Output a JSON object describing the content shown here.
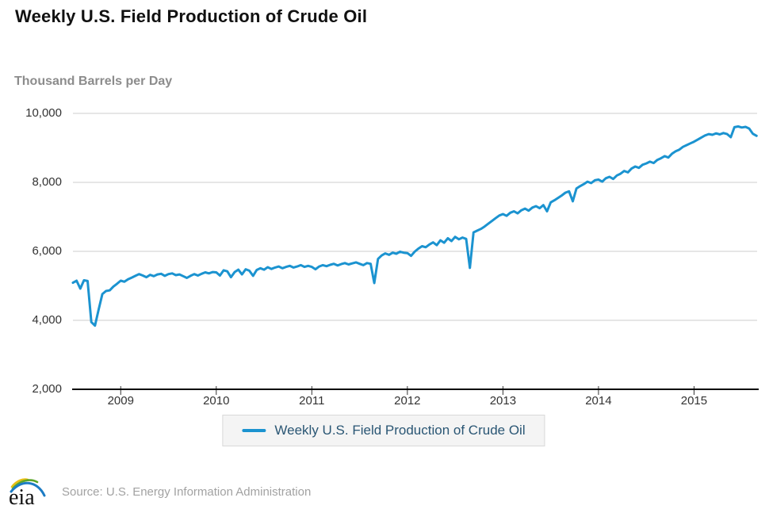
{
  "header": {
    "title": "Weekly U.S. Field Production of Crude Oil",
    "subtitle": "Thousand Barrels per Day"
  },
  "legend": {
    "label": "Weekly U.S. Field Production of Crude Oil",
    "swatch_color": "#1b93d0"
  },
  "footer": {
    "logo_text": "eia",
    "source": "Source: U.S. Energy Information Administration"
  },
  "colors": {
    "line": "#1b93d0",
    "gridline": "#cccccc",
    "axis": "#000000",
    "tick_label": "#333333",
    "legend_text": "#2a5674",
    "legend_bg": "#f4f4f4",
    "legend_border": "#d9d9d9",
    "subtitle_gray": "#8c8c8c",
    "source_gray": "#a2a2a2"
  },
  "chart_data": {
    "type": "line",
    "title": "Weekly U.S. Field Production of Crude Oil",
    "xlabel": "",
    "ylabel": "Thousand Barrels per Day",
    "frequency": "weekly (values sampled biweekly)",
    "grid": "horizontal",
    "legend_position": "bottom-center",
    "xlim": [
      2008.5,
      2015.66
    ],
    "ylim": [
      2000,
      10000
    ],
    "y_ticks": [
      2000,
      4000,
      6000,
      8000,
      10000
    ],
    "y_tick_labels": [
      "2,000",
      "4,000",
      "6,000",
      "8,000",
      "10,000"
    ],
    "x_ticks": [
      2009,
      2010,
      2011,
      2012,
      2013,
      2014,
      2015
    ],
    "x_tick_labels": [
      "2009",
      "2010",
      "2011",
      "2012",
      "2013",
      "2014",
      "2015"
    ],
    "x_start": 2008.5,
    "x_step": 0.0384615,
    "series": [
      {
        "name": "Weekly U.S. Field Production of Crude Oil",
        "color": "#1b93d0",
        "values": [
          5090,
          5150,
          4920,
          5160,
          5140,
          3950,
          3845,
          4320,
          4760,
          4850,
          4870,
          4980,
          5060,
          5150,
          5120,
          5190,
          5240,
          5290,
          5340,
          5300,
          5250,
          5320,
          5280,
          5330,
          5350,
          5290,
          5340,
          5360,
          5310,
          5330,
          5280,
          5230,
          5290,
          5340,
          5300,
          5350,
          5390,
          5360,
          5400,
          5390,
          5300,
          5450,
          5420,
          5250,
          5400,
          5470,
          5330,
          5480,
          5440,
          5290,
          5460,
          5510,
          5470,
          5540,
          5490,
          5530,
          5560,
          5510,
          5550,
          5580,
          5530,
          5560,
          5600,
          5550,
          5580,
          5550,
          5480,
          5560,
          5600,
          5570,
          5610,
          5640,
          5590,
          5630,
          5660,
          5620,
          5650,
          5680,
          5640,
          5600,
          5660,
          5640,
          5080,
          5780,
          5880,
          5940,
          5900,
          5960,
          5930,
          5990,
          5960,
          5950,
          5870,
          5990,
          6080,
          6150,
          6120,
          6200,
          6260,
          6180,
          6320,
          6250,
          6380,
          6300,
          6420,
          6350,
          6400,
          6360,
          5520,
          6550,
          6600,
          6650,
          6720,
          6800,
          6880,
          6960,
          7040,
          7080,
          7030,
          7120,
          7160,
          7100,
          7190,
          7240,
          7180,
          7270,
          7310,
          7250,
          7340,
          7160,
          7420,
          7480,
          7550,
          7620,
          7700,
          7740,
          7450,
          7820,
          7890,
          7950,
          8020,
          7980,
          8060,
          8080,
          8020,
          8120,
          8160,
          8100,
          8200,
          8250,
          8330,
          8290,
          8400,
          8460,
          8420,
          8510,
          8550,
          8600,
          8560,
          8650,
          8700,
          8760,
          8720,
          8830,
          8900,
          8950,
          9030,
          9080,
          9130,
          9180,
          9240,
          9300,
          9360,
          9400,
          9380,
          9420,
          9390,
          9430,
          9400,
          9310,
          9600,
          9620,
          9590,
          9610,
          9560,
          9410,
          9350
        ]
      }
    ]
  }
}
